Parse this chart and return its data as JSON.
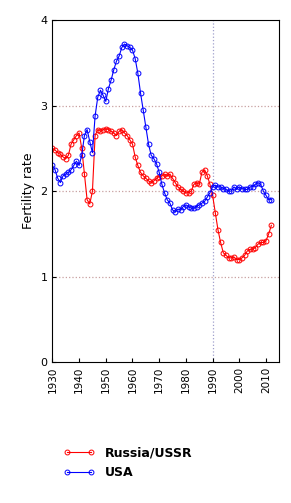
{
  "russia_years": [
    1930,
    1931,
    1932,
    1933,
    1934,
    1935,
    1936,
    1937,
    1938,
    1939,
    1940,
    1941,
    1942,
    1943,
    1944,
    1945,
    1946,
    1947,
    1948,
    1949,
    1950,
    1951,
    1952,
    1953,
    1954,
    1955,
    1956,
    1957,
    1958,
    1959,
    1960,
    1961,
    1962,
    1963,
    1964,
    1965,
    1966,
    1967,
    1968,
    1969,
    1970,
    1971,
    1972,
    1973,
    1974,
    1975,
    1976,
    1977,
    1978,
    1979,
    1980,
    1981,
    1982,
    1983,
    1984,
    1985,
    1986,
    1987,
    1988,
    1989,
    1990,
    1991,
    1992,
    1993,
    1994,
    1995,
    1996,
    1997,
    1998,
    1999,
    2000,
    2001,
    2002,
    2003,
    2004,
    2005,
    2006,
    2007,
    2008,
    2009,
    2010,
    2011,
    2012
  ],
  "russia_values": [
    2.5,
    2.48,
    2.45,
    2.43,
    2.4,
    2.38,
    2.42,
    2.55,
    2.6,
    2.65,
    2.68,
    2.5,
    2.2,
    1.9,
    1.85,
    2.0,
    2.65,
    2.72,
    2.7,
    2.72,
    2.73,
    2.72,
    2.7,
    2.68,
    2.65,
    2.7,
    2.72,
    2.68,
    2.65,
    2.6,
    2.55,
    2.4,
    2.3,
    2.22,
    2.18,
    2.15,
    2.12,
    2.1,
    2.12,
    2.15,
    2.17,
    2.18,
    2.2,
    2.18,
    2.2,
    2.15,
    2.1,
    2.05,
    2.02,
    2.0,
    1.98,
    1.98,
    2.0,
    2.08,
    2.1,
    2.08,
    2.22,
    2.25,
    2.18,
    2.08,
    1.95,
    1.75,
    1.55,
    1.4,
    1.28,
    1.25,
    1.22,
    1.22,
    1.23,
    1.2,
    1.2,
    1.22,
    1.25,
    1.3,
    1.32,
    1.32,
    1.34,
    1.38,
    1.4,
    1.4,
    1.42,
    1.5,
    1.6
  ],
  "usa_years": [
    1930,
    1931,
    1932,
    1933,
    1934,
    1935,
    1936,
    1937,
    1938,
    1939,
    1940,
    1941,
    1942,
    1943,
    1944,
    1945,
    1946,
    1947,
    1948,
    1949,
    1950,
    1951,
    1952,
    1953,
    1954,
    1955,
    1956,
    1957,
    1958,
    1959,
    1960,
    1961,
    1962,
    1963,
    1964,
    1965,
    1966,
    1967,
    1968,
    1969,
    1970,
    1971,
    1972,
    1973,
    1974,
    1975,
    1976,
    1977,
    1978,
    1979,
    1980,
    1981,
    1982,
    1983,
    1984,
    1985,
    1986,
    1987,
    1988,
    1989,
    1990,
    1991,
    1992,
    1993,
    1994,
    1995,
    1996,
    1997,
    1998,
    1999,
    2000,
    2001,
    2002,
    2003,
    2004,
    2005,
    2006,
    2007,
    2008,
    2009,
    2010,
    2011,
    2012
  ],
  "usa_values": [
    2.3,
    2.25,
    2.15,
    2.1,
    2.18,
    2.2,
    2.22,
    2.25,
    2.3,
    2.35,
    2.3,
    2.42,
    2.65,
    2.72,
    2.58,
    2.45,
    2.88,
    3.1,
    3.18,
    3.12,
    3.05,
    3.2,
    3.3,
    3.42,
    3.52,
    3.58,
    3.68,
    3.72,
    3.7,
    3.68,
    3.65,
    3.55,
    3.38,
    3.15,
    2.95,
    2.75,
    2.55,
    2.42,
    2.38,
    2.32,
    2.22,
    2.08,
    1.98,
    1.9,
    1.86,
    1.78,
    1.76,
    1.79,
    1.78,
    1.82,
    1.84,
    1.82,
    1.8,
    1.8,
    1.82,
    1.84,
    1.86,
    1.88,
    1.93,
    1.98,
    2.05,
    2.07,
    2.05,
    2.05,
    2.03,
    2.02,
    2.0,
    2.0,
    2.05,
    2.02,
    2.05,
    2.03,
    2.02,
    2.02,
    2.05,
    2.05,
    2.08,
    2.1,
    2.08,
    2.0,
    1.95,
    1.9,
    1.9
  ],
  "russia_color": "#ff0000",
  "usa_color": "#0000ff",
  "grid_color": "#c8a0a0",
  "ylabel": "Fertility rate",
  "xlim": [
    1930,
    2015
  ],
  "ylim": [
    0,
    4
  ],
  "yticks": [
    0,
    1,
    2,
    3,
    4
  ],
  "xticks": [
    1930,
    1940,
    1950,
    1960,
    1970,
    1980,
    1990,
    2000,
    2010
  ],
  "vline_year": 1990,
  "vline_color": "#a0a0cc",
  "legend_labels": [
    "Russia/USSR",
    "USA"
  ],
  "legend_fontsize": 9,
  "marker": "o",
  "markersize": 3.5,
  "linewidth": 0.8,
  "markerfacecolor": "none"
}
